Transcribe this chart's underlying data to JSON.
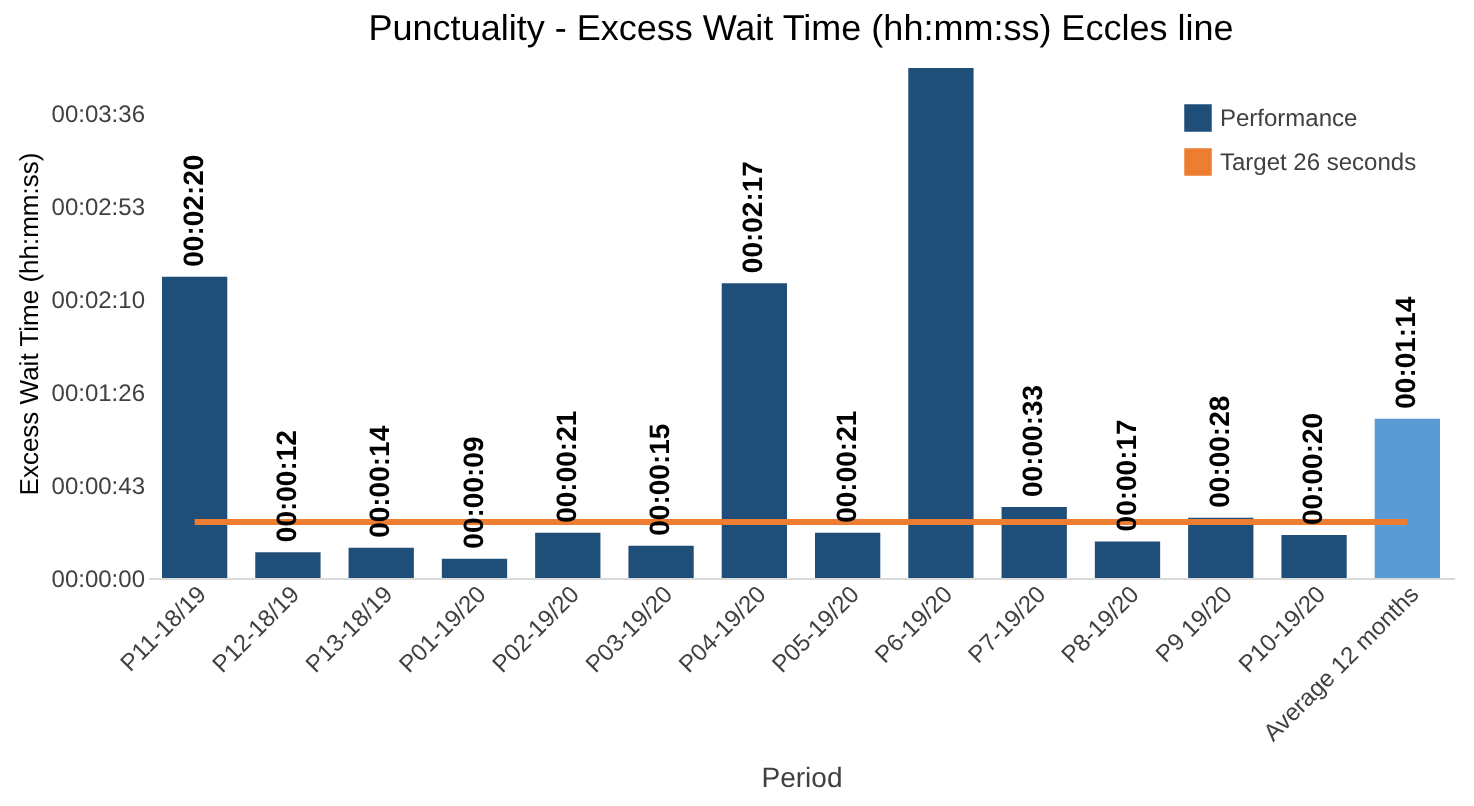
{
  "chart_data": {
    "type": "bar",
    "title": "Punctuality - Excess Wait Time (hh:mm:ss) Eccles line",
    "xlabel": "Period",
    "ylabel": "Excess Wait Time (hh:mm:ss)",
    "categories": [
      "P11-18/19",
      "P12-18/19",
      "P13-18/19",
      "P01-19/20",
      "P02-19/20",
      "P03-19/20",
      "P04-19/20",
      "P05-19/20",
      "P6-19/20",
      "P7-19/20",
      "P8-19/20",
      "P9 19/20",
      "P10-19/20",
      "Average 12 months"
    ],
    "series": [
      {
        "name": "Performance",
        "color": "#1f4e79",
        "colors": [
          "#1f4e79",
          "#1f4e79",
          "#1f4e79",
          "#1f4e79",
          "#1f4e79",
          "#1f4e79",
          "#1f4e79",
          "#1f4e79",
          "#1f4e79",
          "#1f4e79",
          "#1f4e79",
          "#1f4e79",
          "#1f4e79",
          "#5b9bd5"
        ],
        "values": [
          140,
          12,
          14,
          9,
          21,
          15,
          137,
          21,
          237,
          33,
          17,
          28,
          20,
          74
        ],
        "value_labels": [
          "00:02:20",
          "00:00:12",
          "00:00:14",
          "00:00:09",
          "00:00:21",
          "00:00:15",
          "00:02:17",
          "00:00:21",
          null,
          "00:00:33",
          "00:00:17",
          "00:00:28",
          "00:00:20",
          "00:01:14"
        ]
      },
      {
        "name": "Target 26 seconds",
        "type": "line",
        "color": "#ed7d31",
        "values": [
          26,
          26,
          26,
          26,
          26,
          26,
          26,
          26,
          26,
          26,
          26,
          26,
          26,
          26
        ]
      }
    ],
    "ylim": [
      0,
      237
    ],
    "yticks": [
      {
        "value": 0,
        "label": "00:00:00"
      },
      {
        "value": 43.2,
        "label": "00:00:43"
      },
      {
        "value": 86.4,
        "label": "00:01:26"
      },
      {
        "value": 129.6,
        "label": "00:02:10"
      },
      {
        "value": 172.8,
        "label": "00:02:53"
      },
      {
        "value": 216,
        "label": "00:03:36"
      }
    ],
    "legend": "top right"
  }
}
